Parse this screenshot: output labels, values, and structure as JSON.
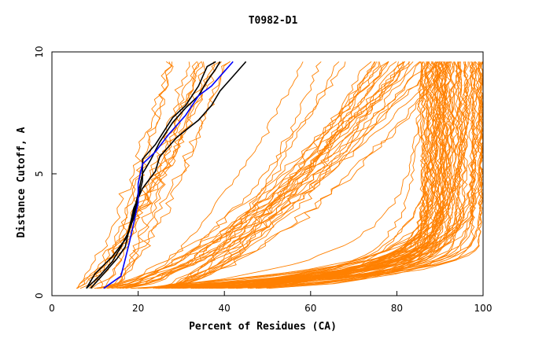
{
  "chart_data": {
    "type": "line",
    "title": "T0982-D1",
    "xlabel": "Percent of Residues (CA)",
    "ylabel": "Distance Cutoff, A",
    "xlim": [
      0,
      100
    ],
    "ylim": [
      0,
      10
    ],
    "x_ticks": [
      "0",
      "20",
      "40",
      "60",
      "80",
      "100"
    ],
    "y_ticks": [
      "0",
      "5",
      "10"
    ],
    "grid": false,
    "legend": "none",
    "colors": {
      "background_series": "#ff8000",
      "highlight_black": "#000000",
      "highlight_blue": "#0000ff",
      "axis": "#000000"
    },
    "highlighted_series": [
      {
        "color": "#000000",
        "points": [
          [
            8,
            0.3
          ],
          [
            10,
            0.9
          ],
          [
            14,
            1.6
          ],
          [
            17,
            2.3
          ],
          [
            19,
            3.2
          ],
          [
            20,
            4.0
          ],
          [
            21,
            4.7
          ],
          [
            21,
            5.6
          ],
          [
            24,
            6.2
          ],
          [
            28,
            7.3
          ],
          [
            31,
            7.8
          ],
          [
            34,
            8.6
          ],
          [
            36,
            9.4
          ],
          [
            38,
            9.6
          ]
        ]
      },
      {
        "color": "#000000",
        "points": [
          [
            9,
            0.3
          ],
          [
            12,
            0.9
          ],
          [
            15,
            1.5
          ],
          [
            17,
            2.0
          ],
          [
            18,
            2.8
          ],
          [
            19,
            3.6
          ],
          [
            21,
            4.4
          ],
          [
            24,
            5.1
          ],
          [
            25,
            5.7
          ],
          [
            29,
            6.5
          ],
          [
            34,
            7.2
          ],
          [
            37,
            7.8
          ],
          [
            39,
            8.4
          ],
          [
            42,
            9.0
          ],
          [
            45,
            9.6
          ]
        ]
      },
      {
        "color": "#000000",
        "points": [
          [
            8,
            0.3
          ],
          [
            11,
            0.8
          ],
          [
            14,
            1.4
          ],
          [
            16,
            2.0
          ],
          [
            18,
            2.7
          ],
          [
            19,
            3.4
          ],
          [
            20,
            4.2
          ],
          [
            21,
            5.0
          ],
          [
            23,
            5.6
          ],
          [
            25,
            6.3
          ],
          [
            28,
            7.1
          ],
          [
            31,
            7.7
          ],
          [
            34,
            8.2
          ],
          [
            36,
            8.8
          ],
          [
            38,
            9.3
          ],
          [
            39,
            9.6
          ]
        ]
      },
      {
        "color": "#0000ff",
        "points": [
          [
            12,
            0.3
          ],
          [
            16,
            0.8
          ],
          [
            17,
            1.5
          ],
          [
            18,
            2.2
          ],
          [
            19,
            3.0
          ],
          [
            20,
            3.8
          ],
          [
            20,
            4.6
          ],
          [
            21,
            5.4
          ],
          [
            24,
            5.9
          ],
          [
            27,
            6.6
          ],
          [
            31,
            7.4
          ],
          [
            34,
            8.2
          ],
          [
            37,
            8.6
          ],
          [
            40,
            9.2
          ],
          [
            42,
            9.6
          ]
        ]
      }
    ]
  }
}
